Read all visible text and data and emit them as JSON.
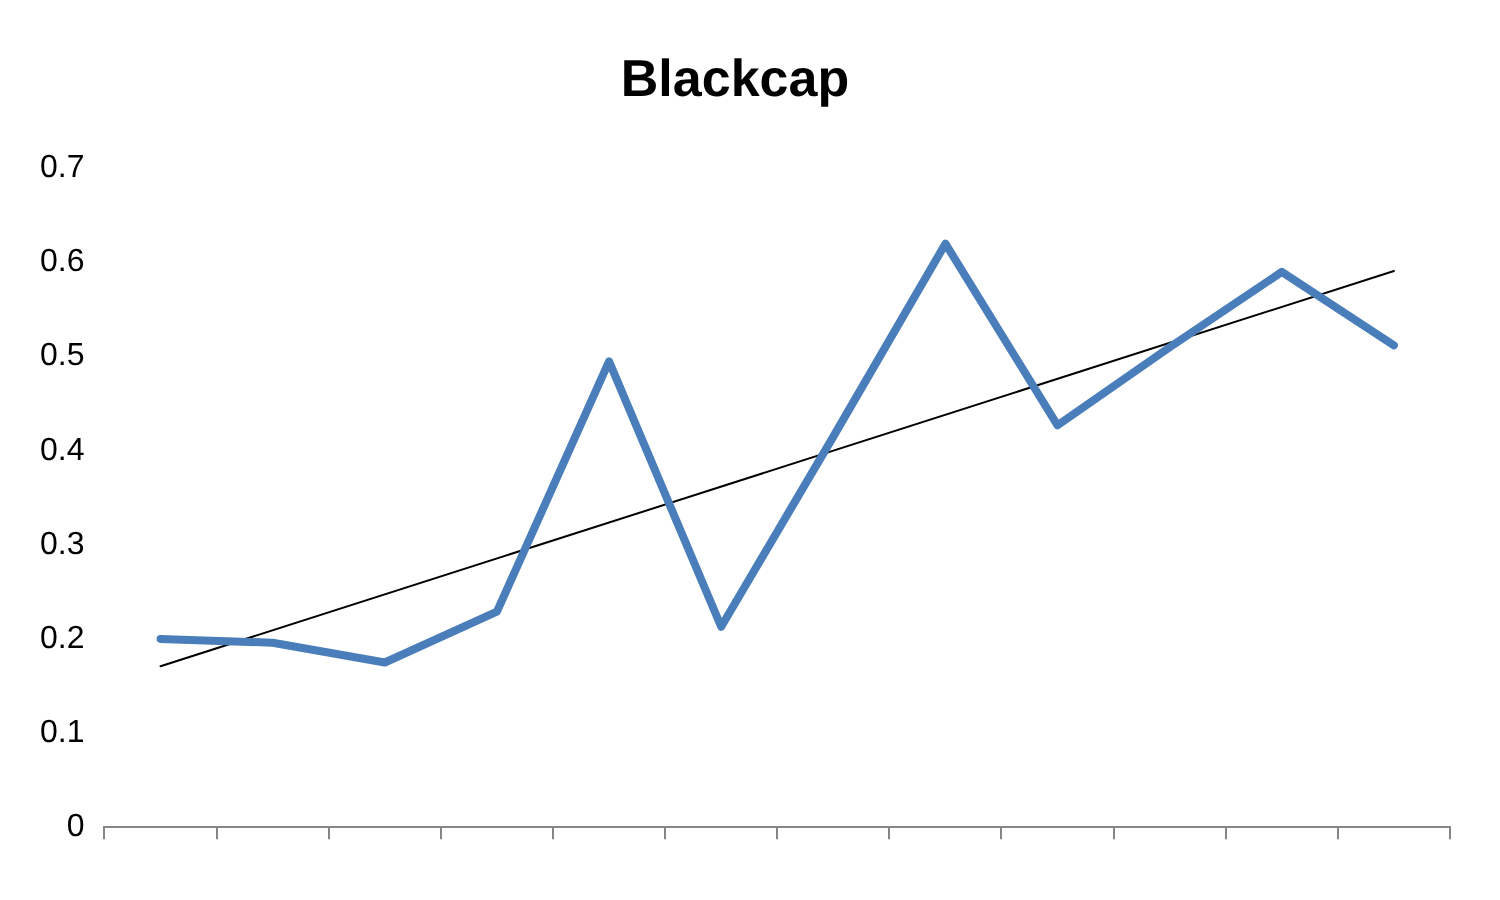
{
  "chart_data": {
    "type": "line",
    "title": "Blackcap",
    "categories": [
      null,
      null,
      null,
      null,
      null,
      null,
      null,
      null,
      null,
      null,
      null,
      null
    ],
    "series": [
      {
        "color": "#4a7ebb",
        "values": [
          0.2,
          0.196,
          0.175,
          0.229,
          0.495,
          0.213,
          0.415,
          0.62,
          0.427,
          0.51,
          0.59,
          0.512
        ]
      },
      {
        "type": "line",
        "color": "#000000",
        "values": [
          0.171,
          null,
          null,
          null,
          null,
          null,
          null,
          null,
          null,
          null,
          null,
          0.591
        ]
      }
    ],
    "ylim": [
      0,
      0.7
    ],
    "yticks": [
      0,
      0.1,
      0.2,
      0.3,
      0.4,
      0.5,
      0.6,
      0.7
    ],
    "grid": false,
    "legend": false,
    "marker": "none"
  }
}
